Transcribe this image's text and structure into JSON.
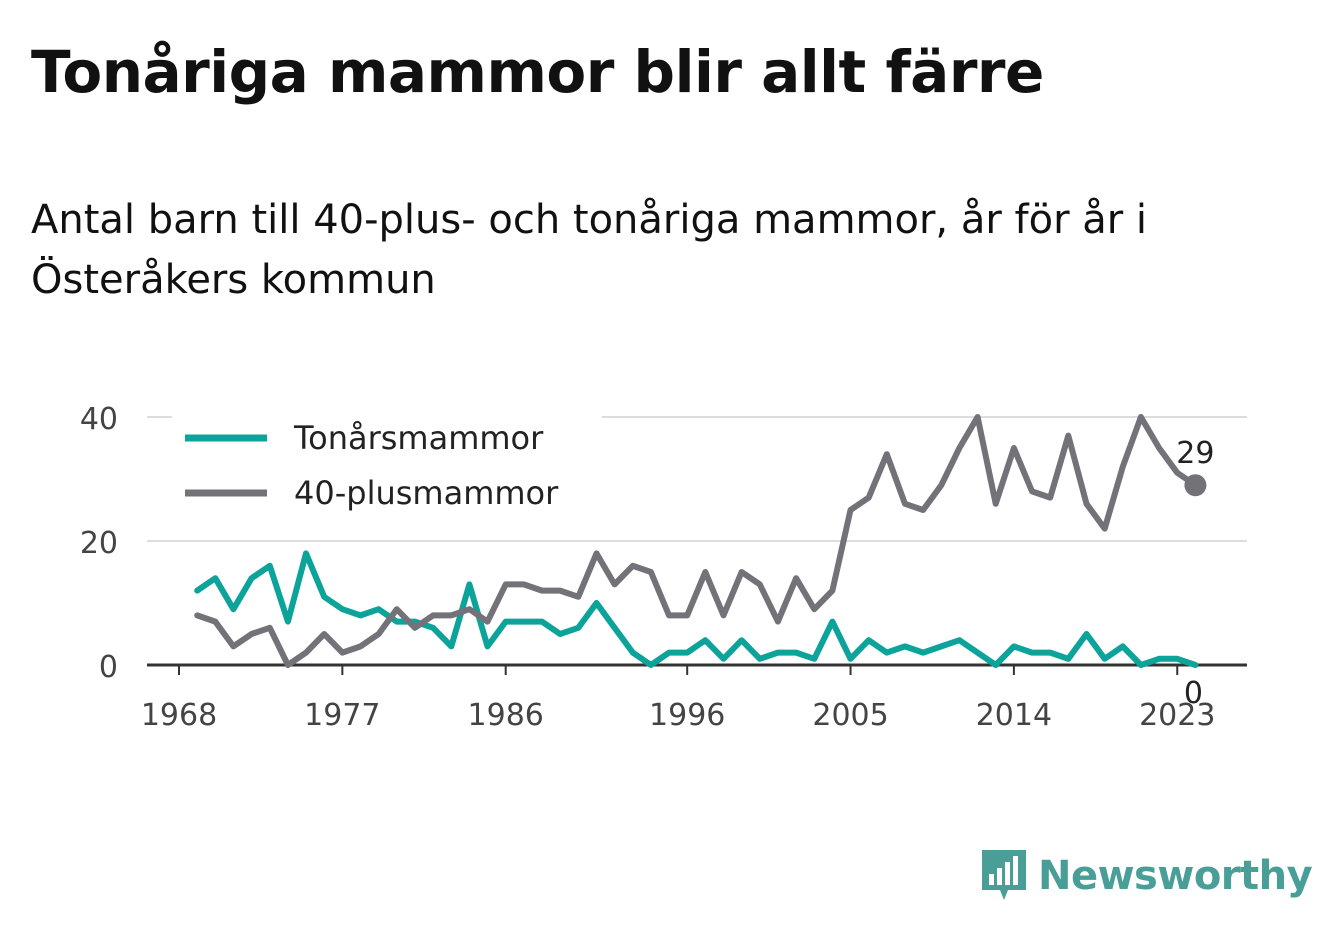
{
  "title": "Tonåriga mammor blir allt färre",
  "subtitle": "Antal barn till 40-plus- och tonåriga mammor, år för år i Österåkers kommun",
  "brand": {
    "name": "Newsworthy",
    "color": "#4a9e98"
  },
  "chart_data": {
    "type": "line",
    "x": [
      1969,
      1970,
      1971,
      1972,
      1973,
      1974,
      1975,
      1976,
      1977,
      1978,
      1979,
      1980,
      1981,
      1982,
      1983,
      1984,
      1985,
      1986,
      1987,
      1988,
      1989,
      1990,
      1991,
      1992,
      1993,
      1994,
      1995,
      1996,
      1997,
      1998,
      1999,
      2000,
      2001,
      2002,
      2003,
      2004,
      2005,
      2006,
      2007,
      2008,
      2009,
      2010,
      2011,
      2012,
      2013,
      2014,
      2015,
      2016,
      2017,
      2018,
      2019,
      2020,
      2021,
      2022,
      2023,
      2024
    ],
    "series": [
      {
        "name": "Tonårsmammor",
        "color": "#0ca39a",
        "values": [
          12,
          14,
          9,
          14,
          16,
          7,
          18,
          11,
          9,
          8,
          9,
          7,
          7,
          6,
          3,
          13,
          3,
          7,
          7,
          7,
          5,
          6,
          10,
          6,
          2,
          0,
          2,
          2,
          4,
          1,
          4,
          1,
          2,
          2,
          1,
          7,
          1,
          4,
          2,
          3,
          2,
          3,
          4,
          2,
          0,
          3,
          2,
          2,
          1,
          5,
          1,
          3,
          0,
          1,
          1,
          0
        ],
        "end_label": "0"
      },
      {
        "name": "40-plusmammor",
        "color": "#737278",
        "values": [
          8,
          7,
          3,
          5,
          6,
          0,
          2,
          5,
          2,
          3,
          5,
          9,
          6,
          8,
          8,
          9,
          7,
          13,
          13,
          12,
          12,
          11,
          18,
          13,
          16,
          15,
          8,
          8,
          15,
          8,
          15,
          13,
          7,
          14,
          9,
          12,
          25,
          27,
          34,
          26,
          25,
          29,
          35,
          40,
          26,
          35,
          28,
          27,
          37,
          26,
          22,
          32,
          40,
          35,
          31,
          29
        ],
        "end_label": "29"
      }
    ],
    "xticks": [
      "1968",
      "1977",
      "1986",
      "1996",
      "2005",
      "2014",
      "2023"
    ],
    "yticks": [
      "0",
      "20",
      "40"
    ],
    "ylim": [
      0,
      40
    ],
    "xlabel": "",
    "ylabel": "",
    "grid": true,
    "legend": "top-left"
  }
}
